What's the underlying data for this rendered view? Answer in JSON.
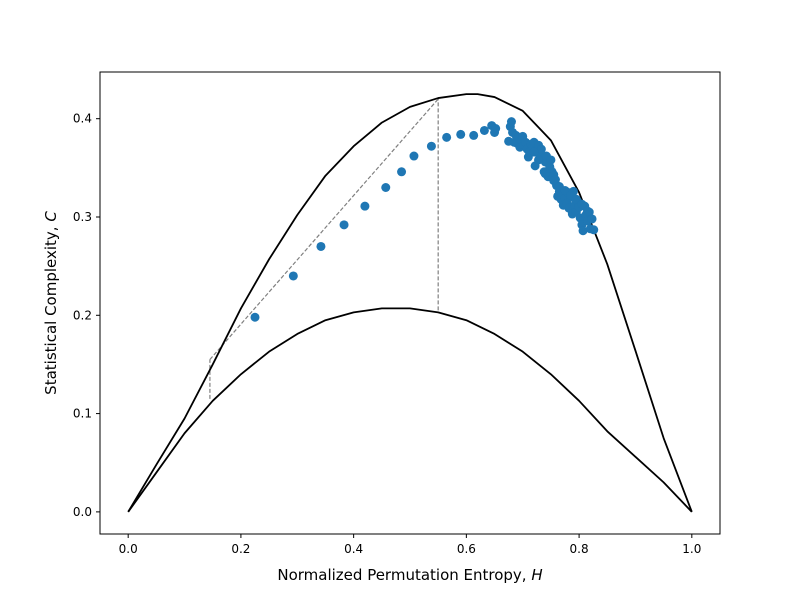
{
  "chart_data": {
    "type": "scatter",
    "xlabel": "Normalized Permutation Entropy, ",
    "xlabel_var": "H",
    "ylabel": "Statistical Complexity, ",
    "ylabel_var": "C",
    "xlim": [
      -0.05,
      1.05
    ],
    "ylim": [
      -0.0225,
      0.4475
    ],
    "xticks": [
      0.0,
      0.2,
      0.4,
      0.6,
      0.8,
      1.0
    ],
    "xtick_labels": [
      "0.0",
      "0.2",
      "0.4",
      "0.6",
      "0.8",
      "1.0"
    ],
    "yticks": [
      0.0,
      0.1,
      0.2,
      0.3,
      0.4
    ],
    "ytick_labels": [
      "0.0",
      "0.1",
      "0.2",
      "0.3",
      "0.4"
    ],
    "grid": false,
    "colors": {
      "points": "#1f77b4",
      "curves": "#000000",
      "guides": "#808080"
    },
    "upper_curve": {
      "x": [
        0.0,
        0.05,
        0.1,
        0.15,
        0.2,
        0.25,
        0.3,
        0.35,
        0.4,
        0.45,
        0.5,
        0.55,
        0.6,
        0.62,
        0.65,
        0.7,
        0.75,
        0.8,
        0.85,
        0.9,
        0.95,
        1.0
      ],
      "y": [
        0.0,
        0.048,
        0.095,
        0.15,
        0.207,
        0.257,
        0.302,
        0.342,
        0.372,
        0.396,
        0.412,
        0.421,
        0.425,
        0.425,
        0.422,
        0.408,
        0.378,
        0.325,
        0.252,
        0.164,
        0.075,
        0.0
      ]
    },
    "lower_curve": {
      "x": [
        0.0,
        0.05,
        0.1,
        0.15,
        0.2,
        0.25,
        0.3,
        0.35,
        0.4,
        0.45,
        0.48,
        0.5,
        0.55,
        0.6,
        0.65,
        0.7,
        0.75,
        0.8,
        0.85,
        0.9,
        0.95,
        1.0
      ],
      "y": [
        0.0,
        0.04,
        0.08,
        0.113,
        0.14,
        0.163,
        0.181,
        0.195,
        0.203,
        0.207,
        0.207,
        0.207,
        0.203,
        0.195,
        0.181,
        0.163,
        0.14,
        0.113,
        0.082,
        0.056,
        0.03,
        0.0
      ]
    },
    "guide_lines": [
      {
        "x": [
          0.145,
          0.145
        ],
        "y": [
          0.115,
          0.155
        ]
      },
      {
        "x": [
          0.145,
          0.55
        ],
        "y": [
          0.155,
          0.42
        ]
      },
      {
        "x": [
          0.55,
          0.55
        ],
        "y": [
          0.205,
          0.42
        ]
      }
    ],
    "points": {
      "x": [
        0.225,
        0.293,
        0.342,
        0.383,
        0.42,
        0.457,
        0.485,
        0.507,
        0.538,
        0.565,
        0.59,
        0.613,
        0.632,
        0.645,
        0.65,
        0.652,
        0.675,
        0.678,
        0.68,
        0.682,
        0.685,
        0.688,
        0.69,
        0.692,
        0.695,
        0.697,
        0.7,
        0.702,
        0.705,
        0.708,
        0.71,
        0.712,
        0.715,
        0.718,
        0.72,
        0.722,
        0.725,
        0.728,
        0.73,
        0.733,
        0.735,
        0.738,
        0.74,
        0.742,
        0.745,
        0.748,
        0.75,
        0.752,
        0.755,
        0.758,
        0.76,
        0.762,
        0.765,
        0.768,
        0.77,
        0.772,
        0.775,
        0.778,
        0.78,
        0.782,
        0.785,
        0.788,
        0.79,
        0.792,
        0.795,
        0.797,
        0.8,
        0.802,
        0.805,
        0.807,
        0.81,
        0.812,
        0.815,
        0.818,
        0.82,
        0.823,
        0.826,
        0.72,
        0.728,
        0.74,
        0.748,
        0.755,
        0.765,
        0.775,
        0.785,
        0.795,
        0.805,
        0.815
      ],
      "y": [
        0.198,
        0.24,
        0.27,
        0.292,
        0.311,
        0.33,
        0.346,
        0.362,
        0.372,
        0.381,
        0.384,
        0.383,
        0.388,
        0.393,
        0.386,
        0.39,
        0.377,
        0.392,
        0.397,
        0.386,
        0.376,
        0.383,
        0.375,
        0.381,
        0.371,
        0.378,
        0.382,
        0.373,
        0.376,
        0.369,
        0.361,
        0.366,
        0.374,
        0.371,
        0.376,
        0.352,
        0.367,
        0.373,
        0.363,
        0.369,
        0.359,
        0.346,
        0.356,
        0.362,
        0.341,
        0.351,
        0.358,
        0.346,
        0.343,
        0.338,
        0.332,
        0.321,
        0.326,
        0.318,
        0.323,
        0.312,
        0.319,
        0.314,
        0.325,
        0.309,
        0.32,
        0.303,
        0.326,
        0.312,
        0.305,
        0.316,
        0.31,
        0.299,
        0.292,
        0.286,
        0.311,
        0.302,
        0.296,
        0.305,
        0.288,
        0.298,
        0.287,
        0.366,
        0.358,
        0.344,
        0.35,
        0.337,
        0.331,
        0.327,
        0.322,
        0.318,
        0.313,
        0.306
      ]
    }
  }
}
